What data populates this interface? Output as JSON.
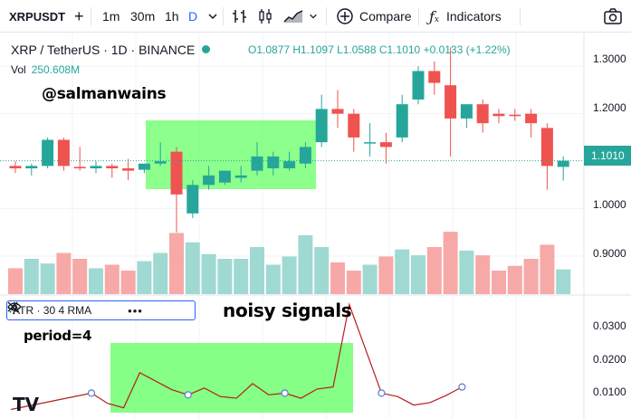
{
  "toolbar": {
    "symbol": "XRPUSDT",
    "intervals": [
      "1m",
      "30m",
      "1h",
      "D"
    ],
    "active_interval": "D",
    "compare_label": "Compare",
    "indicators_label": "Indicators",
    "icons": [
      "plus-icon",
      "chevron-down-icon",
      "bar-chart-icon",
      "candles-icon",
      "area-chart-icon",
      "fx-icon",
      "camera-icon"
    ]
  },
  "legend": {
    "title": "XRP / TetherUS · 1D · BINANCE",
    "open": "O1.0877",
    "high": "H1.1097",
    "low": "L1.0588",
    "close": "C1.1010",
    "change": "+0.0133 (+1.22%)",
    "vol_label": "Vol",
    "vol_value": "250.608M"
  },
  "annotations": {
    "watermark": "@salmanwains",
    "noisy": "noisy signals",
    "period": "period=4"
  },
  "atr_legend": {
    "label": "ATR · 30 4 RMA"
  },
  "price_axis": {
    "labels": [
      "1.3000",
      "1.2000",
      "1.1000",
      "1.0000",
      "0.9000"
    ],
    "current": "1.1010"
  },
  "atr_axis": {
    "labels": [
      "0.0300",
      "0.0200",
      "0.0100"
    ]
  },
  "logo": "TV",
  "colors": {
    "up": "#26a69a",
    "down": "#ef5350",
    "highlight": "#66ff66",
    "atr_line": "#b71c1c",
    "accent": "#2962ff"
  },
  "chart_data": {
    "type": "candlestick",
    "price_range": [
      0.82,
      1.35
    ],
    "candles": [
      {
        "o": 1.09,
        "h": 1.1,
        "l": 1.075,
        "c": 1.085
      },
      {
        "o": 1.085,
        "h": 1.095,
        "l": 1.07,
        "c": 1.09
      },
      {
        "o": 1.09,
        "h": 1.15,
        "l": 1.085,
        "c": 1.145
      },
      {
        "o": 1.145,
        "h": 1.15,
        "l": 1.08,
        "c": 1.09
      },
      {
        "o": 1.088,
        "h": 1.13,
        "l": 1.08,
        "c": 1.085
      },
      {
        "o": 1.085,
        "h": 1.1,
        "l": 1.075,
        "c": 1.09
      },
      {
        "o": 1.09,
        "h": 1.095,
        "l": 1.065,
        "c": 1.085
      },
      {
        "o": 1.085,
        "h": 1.105,
        "l": 1.06,
        "c": 1.08
      },
      {
        "o": 1.082,
        "h": 1.095,
        "l": 1.075,
        "c": 1.095
      },
      {
        "o": 1.095,
        "h": 1.14,
        "l": 1.09,
        "c": 1.1
      },
      {
        "o": 1.12,
        "h": 1.13,
        "l": 0.95,
        "c": 1.03
      },
      {
        "o": 0.99,
        "h": 1.06,
        "l": 0.98,
        "c": 1.05
      },
      {
        "o": 1.05,
        "h": 1.09,
        "l": 1.04,
        "c": 1.07
      },
      {
        "o": 1.055,
        "h": 1.08,
        "l": 1.05,
        "c": 1.08
      },
      {
        "o": 1.065,
        "h": 1.09,
        "l": 1.055,
        "c": 1.07
      },
      {
        "o": 1.08,
        "h": 1.14,
        "l": 1.07,
        "c": 1.11
      },
      {
        "o": 1.085,
        "h": 1.12,
        "l": 1.07,
        "c": 1.11
      },
      {
        "o": 1.085,
        "h": 1.12,
        "l": 1.08,
        "c": 1.1
      },
      {
        "o": 1.095,
        "h": 1.14,
        "l": 1.085,
        "c": 1.13
      },
      {
        "o": 1.14,
        "h": 1.24,
        "l": 1.13,
        "c": 1.21
      },
      {
        "o": 1.21,
        "h": 1.25,
        "l": 1.17,
        "c": 1.2
      },
      {
        "o": 1.2,
        "h": 1.21,
        "l": 1.12,
        "c": 1.15
      },
      {
        "o": 1.14,
        "h": 1.18,
        "l": 1.11,
        "c": 1.14
      },
      {
        "o": 1.14,
        "h": 1.16,
        "l": 1.095,
        "c": 1.13
      },
      {
        "o": 1.15,
        "h": 1.24,
        "l": 1.14,
        "c": 1.22
      },
      {
        "o": 1.23,
        "h": 1.3,
        "l": 1.22,
        "c": 1.29
      },
      {
        "o": 1.29,
        "h": 1.31,
        "l": 1.24,
        "c": 1.265
      },
      {
        "o": 1.26,
        "h": 1.34,
        "l": 1.11,
        "c": 1.19
      },
      {
        "o": 1.19,
        "h": 1.22,
        "l": 1.17,
        "c": 1.22
      },
      {
        "o": 1.22,
        "h": 1.23,
        "l": 1.16,
        "c": 1.18
      },
      {
        "o": 1.2,
        "h": 1.21,
        "l": 1.18,
        "c": 1.195
      },
      {
        "o": 1.198,
        "h": 1.21,
        "l": 1.185,
        "c": 1.195
      },
      {
        "o": 1.2,
        "h": 1.21,
        "l": 1.15,
        "c": 1.18
      },
      {
        "o": 1.17,
        "h": 1.18,
        "l": 1.04,
        "c": 1.09
      },
      {
        "o": 1.088,
        "h": 1.11,
        "l": 1.059,
        "c": 1.101
      }
    ],
    "volume": [
      22,
      30,
      26,
      35,
      30,
      22,
      25,
      20,
      28,
      35,
      52,
      44,
      34,
      30,
      30,
      40,
      25,
      32,
      50,
      40,
      27,
      20,
      25,
      32,
      38,
      33,
      40,
      53,
      37,
      33,
      20,
      24,
      30,
      42,
      21
    ],
    "atr": [
      {
        "i": 0,
        "v": 0.0052
      },
      {
        "i": 5,
        "v": 0.01
      },
      {
        "i": 6,
        "v": 0.007
      },
      {
        "i": 7,
        "v": 0.0057
      },
      {
        "i": 8,
        "v": 0.016
      },
      {
        "i": 10,
        "v": 0.011
      },
      {
        "i": 11,
        "v": 0.0095
      },
      {
        "i": 12,
        "v": 0.0115
      },
      {
        "i": 13,
        "v": 0.009
      },
      {
        "i": 14,
        "v": 0.0085
      },
      {
        "i": 15,
        "v": 0.0128
      },
      {
        "i": 16,
        "v": 0.0095
      },
      {
        "i": 17,
        "v": 0.01
      },
      {
        "i": 18,
        "v": 0.0085
      },
      {
        "i": 19,
        "v": 0.0112
      },
      {
        "i": 20,
        "v": 0.0118
      },
      {
        "i": 21,
        "v": 0.036
      },
      {
        "i": 23,
        "v": 0.01
      },
      {
        "i": 24,
        "v": 0.009
      },
      {
        "i": 25,
        "v": 0.0065
      },
      {
        "i": 26,
        "v": 0.0072
      },
      {
        "i": 27,
        "v": 0.0093
      },
      {
        "i": 28,
        "v": 0.0118
      }
    ],
    "atr_range": [
      0.004,
      0.038
    ]
  }
}
